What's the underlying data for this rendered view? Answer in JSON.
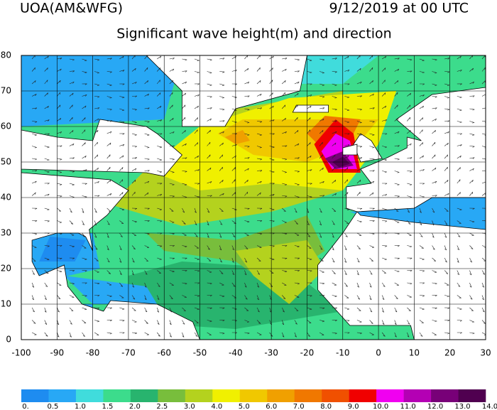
{
  "header": {
    "source": "UOA(AM&WFG)",
    "date": "9/12/2019 at 00 UTC",
    "title": "Significant wave height(m) and direction"
  },
  "map": {
    "xticks": [
      -100,
      -90,
      -80,
      -70,
      -60,
      -50,
      -40,
      -30,
      -20,
      -10,
      0,
      10,
      20,
      30
    ],
    "yticks": [
      0,
      10,
      20,
      30,
      40,
      50,
      60,
      70,
      80
    ]
  },
  "colorbar": {
    "labels": [
      "0.",
      "0.5",
      "1.0",
      "1.5",
      "2.0",
      "2.5",
      "3.0",
      "4.0",
      "5.0",
      "6.0",
      "7.0",
      "8.0",
      "9.0",
      "10.0",
      "11.0",
      "12.0",
      "13.0",
      "14.0"
    ],
    "colors": [
      "#1e8cf0",
      "#28a8f5",
      "#40dcdc",
      "#3cdc8c",
      "#28b46e",
      "#78be3c",
      "#b4d21e",
      "#f0f000",
      "#f0c800",
      "#f0a000",
      "#f07800",
      "#f05000",
      "#f00000",
      "#f000f0",
      "#b400b4",
      "#780078",
      "#500050"
    ]
  }
}
